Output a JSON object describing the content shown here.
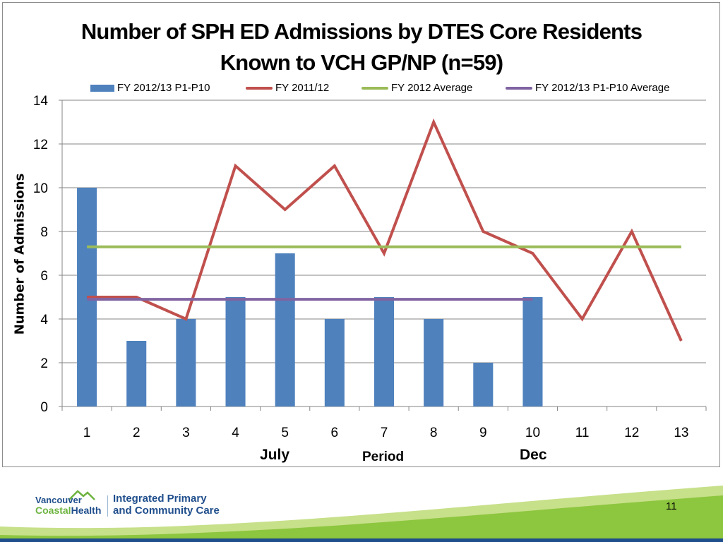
{
  "slide": {
    "title_line1": "Number of SPH ED Admissions by DTES Core Residents",
    "title_line2": "Known to VCH GP/NP (n=59)",
    "page_number": "11"
  },
  "chart_data": {
    "type": "bar",
    "title": "Number of SPH ED Admissions by DTES Core Residents Known to VCH GP/NP (n=59)",
    "xlabel": "Period",
    "ylabel": "Number of Admissions",
    "categories": [
      "1",
      "2",
      "3",
      "4",
      "5",
      "6",
      "7",
      "8",
      "9",
      "10",
      "11",
      "12",
      "13"
    ],
    "ylim": [
      0,
      14
    ],
    "yticks": [
      0,
      2,
      4,
      6,
      8,
      10,
      12,
      14
    ],
    "grid": true,
    "legend_position": "top",
    "x_annotations": [
      {
        "text": "July",
        "at_category": "4"
      },
      {
        "text": "Dec",
        "at_category": "10"
      }
    ],
    "series": [
      {
        "name": "FY 2012/13 P1-P10",
        "kind": "bar",
        "color": "#4f81bd",
        "values": [
          10,
          3,
          4,
          5,
          7,
          4,
          5,
          4,
          2,
          5,
          null,
          null,
          null
        ]
      },
      {
        "name": "FY 2011/12",
        "kind": "line",
        "color": "#c0504d",
        "values": [
          5,
          5,
          4,
          11,
          9,
          11,
          7,
          13,
          8,
          7,
          4,
          8,
          3
        ]
      },
      {
        "name": "FY 2012 Average",
        "kind": "line",
        "color": "#9bbb59",
        "values": [
          7.3,
          7.3,
          7.3,
          7.3,
          7.3,
          7.3,
          7.3,
          7.3,
          7.3,
          7.3,
          7.3,
          7.3,
          7.3
        ]
      },
      {
        "name": "FY 2012/13 P1-P10 Average",
        "kind": "line",
        "color": "#8064a2",
        "values": [
          4.9,
          4.9,
          4.9,
          4.9,
          4.9,
          4.9,
          4.9,
          4.9,
          4.9,
          4.9,
          null,
          null,
          null
        ]
      }
    ]
  },
  "footer": {
    "logo_line1": "Vancouver",
    "logo_coastal": "Coastal",
    "logo_health": "Health",
    "ipc_line1": "Integrated Primary",
    "ipc_line2": "and Community Care",
    "colors": {
      "green": "#8dc63f",
      "light_green": "#c7e08a",
      "blue": "#1f4e8c"
    },
    "icons": [
      "mountain-logo-icon"
    ]
  }
}
